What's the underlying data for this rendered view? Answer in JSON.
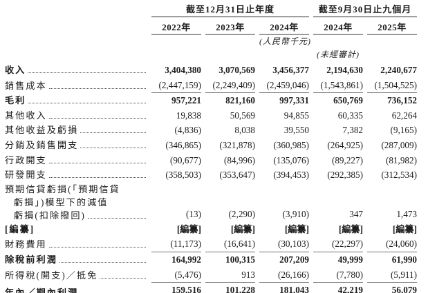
{
  "table": {
    "col_groups": [
      {
        "title": "截至12月31日止年度",
        "span": 3
      },
      {
        "title": "截至9月30日止九個月",
        "span": 2
      }
    ],
    "columns": [
      "2022年",
      "2023年",
      "2024年",
      "2024年",
      "2025年"
    ],
    "unit_note": "(人民幣千元)",
    "unaudited_note": "(未經審計)",
    "rows": [
      {
        "label": "收入",
        "bold": true,
        "values": [
          "3,404,380",
          "3,070,569",
          "3,456,377",
          "2,194,630",
          "2,240,677"
        ]
      },
      {
        "label": "銷售成本",
        "underline": "single",
        "values": [
          "(2,447,159)",
          "(2,249,409)",
          "(2,459,046)",
          "(1,543,861)",
          "(1,504,525)"
        ]
      },
      {
        "label": "毛利",
        "bold": true,
        "values": [
          "957,221",
          "821,160",
          "997,331",
          "650,769",
          "736,152"
        ]
      },
      {
        "label": "其他收入",
        "values": [
          "19,838",
          "50,569",
          "94,855",
          "60,335",
          "62,264"
        ]
      },
      {
        "label": "其他收益及虧損",
        "values": [
          "(4,836)",
          "8,038",
          "39,550",
          "7,382",
          "(9,165)"
        ]
      },
      {
        "label": "分銷及銷售開支",
        "values": [
          "(346,865)",
          "(321,878)",
          "(360,985)",
          "(264,925)",
          "(287,009)"
        ]
      },
      {
        "label": "行政開支",
        "values": [
          "(90,677)",
          "(84,996)",
          "(135,076)",
          "(89,227)",
          "(81,982)"
        ]
      },
      {
        "label": "研發開支",
        "values": [
          "(358,503)",
          "(353,647)",
          "(394,453)",
          "(292,385)",
          "(312,534)"
        ]
      },
      {
        "label_lines": [
          "預期信貸虧損(「預期信貸",
          "虧損」)模型下的減值",
          "虧損(扣除撥回)"
        ],
        "values": [
          "(13)",
          "(2,290)",
          "(3,910)",
          "347",
          "1,473"
        ]
      },
      {
        "label": "[編纂]",
        "bold": true,
        "no_dots": true,
        "values": [
          "[編纂]",
          "[編纂]",
          "[編纂]",
          "[編纂]",
          "[編纂]"
        ]
      },
      {
        "label": "財務費用",
        "underline": "single",
        "values": [
          "(11,173)",
          "(16,641)",
          "(30,103)",
          "(22,297)",
          "(24,060)"
        ]
      },
      {
        "label": "除稅前利潤",
        "bold": true,
        "values": [
          "164,992",
          "100,315",
          "207,209",
          "49,999",
          "61,990"
        ]
      },
      {
        "label": "所得稅(開支)／抵免",
        "underline": "single",
        "values": [
          "(5,476)",
          "913",
          "(26,166)",
          "(7,780)",
          "(5,911)"
        ]
      },
      {
        "label": "年內／期內利潤",
        "bold": true,
        "underline": "double",
        "values": [
          "159,516",
          "101,228",
          "181,043",
          "42,219",
          "56,079"
        ]
      }
    ]
  }
}
